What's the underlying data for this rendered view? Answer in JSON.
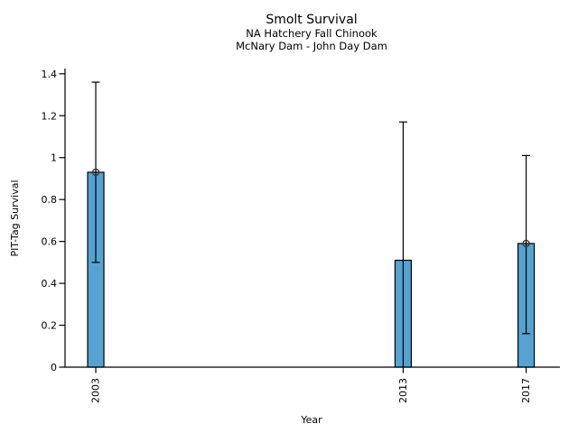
{
  "chart_data": {
    "type": "bar",
    "title": "Smolt Survival",
    "subtitle_line1": "NA Hatchery Fall Chinook",
    "subtitle_line2": "McNary Dam - John Day Dam",
    "xlabel": "Year",
    "ylabel": "PIT-Tag Survival",
    "categories": [
      "2003",
      "2013",
      "2017"
    ],
    "values": [
      0.93,
      0.51,
      0.59
    ],
    "error_low": [
      0.5,
      0.0,
      0.16
    ],
    "error_high": [
      1.36,
      1.17,
      1.01
    ],
    "point_markers": [
      true,
      false,
      true
    ],
    "xlim": [
      2002,
      2018.1
    ],
    "ylim": [
      0,
      1.425
    ],
    "ytick_labels": [
      "0",
      "0.2",
      "0.4",
      "0.6",
      "0.8",
      "1",
      "1.2",
      "1.4"
    ],
    "grid": false,
    "legend": "none",
    "bar_color": "#56a3d2",
    "bar_edge_color": "#000000",
    "error_bar_color": "#000000",
    "marker_color": "#3a3a3a"
  }
}
